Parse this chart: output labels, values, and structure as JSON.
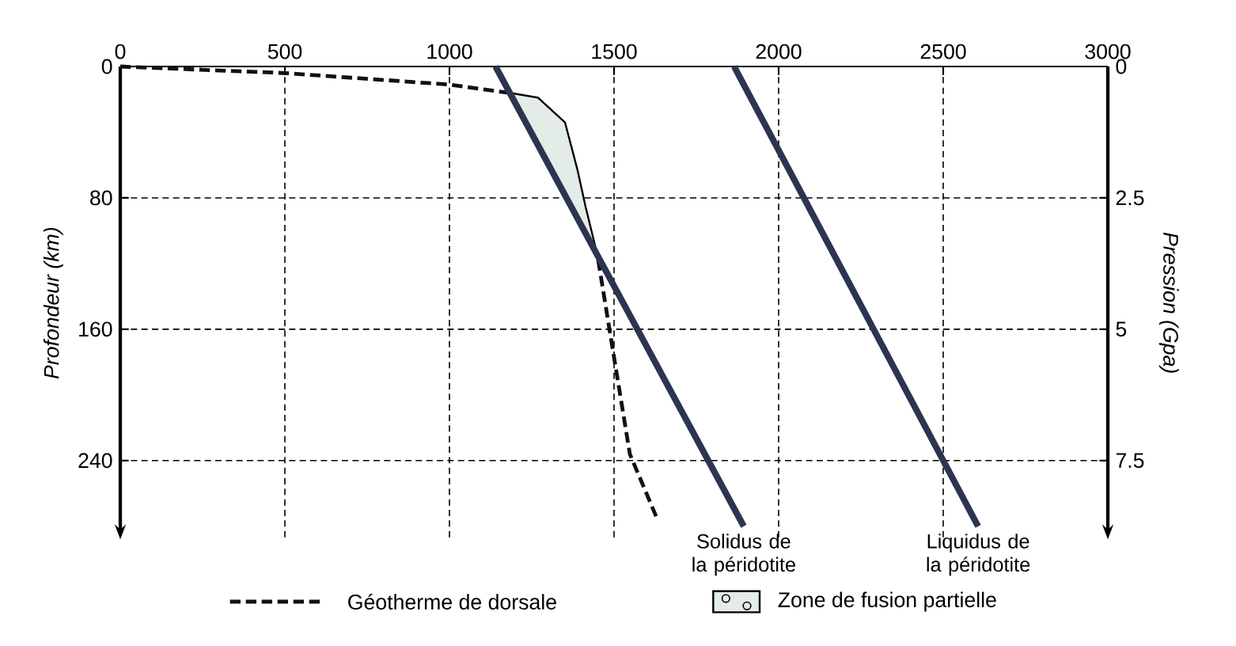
{
  "chart_data": {
    "type": "line",
    "ylabel": "Profondeur (km)",
    "y2label": "Pression (Gpa)",
    "xlim": [
      0,
      3000
    ],
    "xticks": [
      0,
      500,
      1000,
      1500,
      2000,
      2500,
      3000
    ],
    "ylim": [
      288,
      0
    ],
    "yticks": [
      0,
      80,
      160,
      240
    ],
    "y2lim": [
      9,
      0
    ],
    "y2ticks": [
      0,
      2.5,
      5,
      7.5
    ],
    "grid": true,
    "legend": "bottom",
    "series": [
      {
        "name": "Géotherme de dorsale",
        "line_style": "dashed",
        "color": "#111111",
        "x": [
          0,
          500,
          1000,
          1180,
          1300,
          1452,
          1486,
          1548,
          1630
        ],
        "values": [
          0,
          4,
          11,
          16,
          null,
          118,
          160,
          236,
          275
        ]
      },
      {
        "name": "Zone de fusion partielle",
        "type": "area",
        "color": "#e4ece8",
        "x": [
          1183,
          1269,
          1351,
          1389,
          1413,
          1452
        ],
        "values": [
          16,
          19,
          34,
          63,
          85,
          117
        ]
      },
      {
        "name": "Solidus de la péridotite",
        "line_style": "solid",
        "color": "#2b3550",
        "x": [
          1140,
          1894
        ],
        "values": [
          0,
          280
        ]
      },
      {
        "name": "Liquidus de la péridotite",
        "line_style": "solid",
        "color": "#2b3550",
        "x": [
          1865,
          2606
        ],
        "values": [
          0,
          280
        ]
      }
    ]
  }
}
